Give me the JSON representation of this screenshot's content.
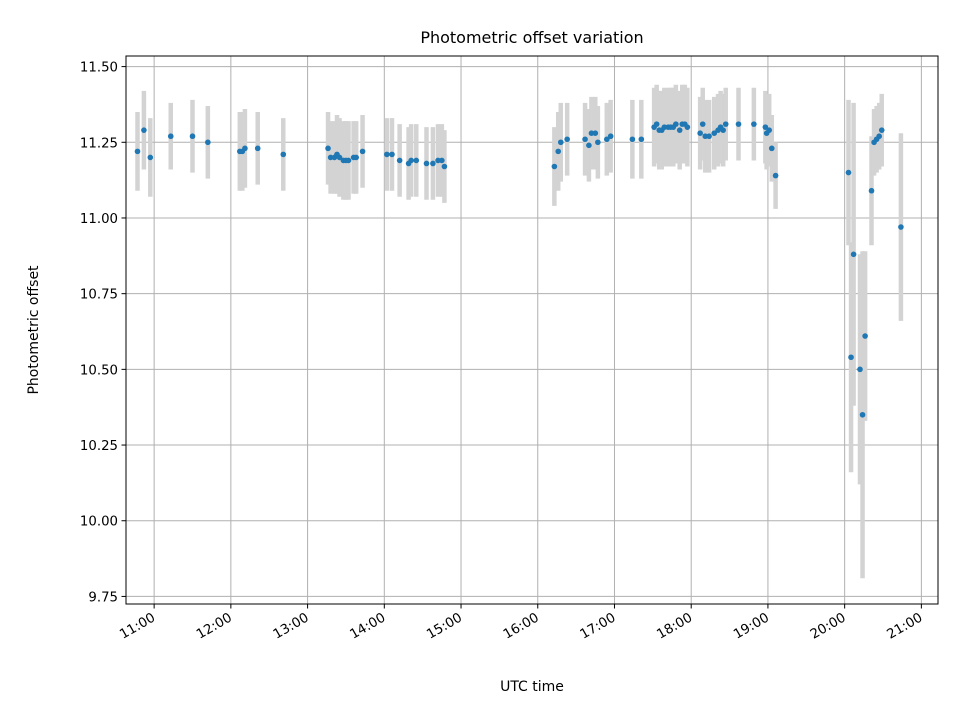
{
  "chart_data": {
    "type": "scatter",
    "title": "Photometric offset variation",
    "xlabel": "UTC time",
    "ylabel": "Photometric offset",
    "xlim": [
      "10:38",
      "21:13"
    ],
    "ylim": [
      9.725,
      11.535
    ],
    "x_ticks": [
      "11:00",
      "12:00",
      "13:00",
      "14:00",
      "15:00",
      "16:00",
      "17:00",
      "18:00",
      "19:00",
      "20:00",
      "21:00"
    ],
    "y_ticks": [
      "9.75",
      "10.00",
      "10.25",
      "10.50",
      "10.75",
      "11.00",
      "11.25",
      "11.50"
    ],
    "grid": true,
    "colors": {
      "points": "#1f77b4",
      "error_bars": "#d3d3d3",
      "grid": "#b0b0b0"
    },
    "series": [
      {
        "x": [
          "10:47",
          "10:52",
          "10:57",
          "11:13",
          "11:30",
          "11:42",
          "12:07",
          "12:09",
          "12:11",
          "12:21",
          "12:41",
          "13:16",
          "13:18",
          "13:21",
          "13:23",
          "13:25",
          "13:28",
          "13:30",
          "13:32",
          "13:36",
          "13:38",
          "13:43",
          "14:02",
          "14:06",
          "14:12",
          "14:19",
          "14:21",
          "14:25",
          "14:33",
          "14:38",
          "14:42",
          "14:45",
          "14:47",
          "16:13",
          "16:16",
          "16:18",
          "16:23",
          "16:37",
          "16:40",
          "16:42",
          "16:45",
          "16:47",
          "16:54",
          "16:57",
          "17:14",
          "17:21",
          "17:31",
          "17:33",
          "17:35",
          "17:37",
          "17:39",
          "17:42",
          "17:44",
          "17:46",
          "17:48",
          "17:51",
          "17:53",
          "17:55",
          "17:57",
          "18:07",
          "18:09",
          "18:11",
          "18:14",
          "18:18",
          "18:21",
          "18:23",
          "18:25",
          "18:27",
          "18:37",
          "18:49",
          "18:58",
          "18:59",
          "19:01",
          "19:03",
          "19:06",
          "20:03",
          "20:05",
          "20:07",
          "20:12",
          "20:14",
          "20:16",
          "20:21",
          "20:23",
          "20:25",
          "20:27",
          "20:29",
          "20:44"
        ],
        "y": [
          11.22,
          11.29,
          11.2,
          11.27,
          11.27,
          11.25,
          11.22,
          11.22,
          11.23,
          11.23,
          11.21,
          11.23,
          11.2,
          11.2,
          11.21,
          11.2,
          11.19,
          11.19,
          11.19,
          11.2,
          11.2,
          11.22,
          11.21,
          11.21,
          11.19,
          11.18,
          11.19,
          11.19,
          11.18,
          11.18,
          11.19,
          11.19,
          11.17,
          11.17,
          11.22,
          11.25,
          11.26,
          11.26,
          11.24,
          11.28,
          11.28,
          11.25,
          11.26,
          11.27,
          11.26,
          11.26,
          11.3,
          11.31,
          11.29,
          11.29,
          11.3,
          11.3,
          11.3,
          11.3,
          11.31,
          11.29,
          11.31,
          11.31,
          11.3,
          11.28,
          11.31,
          11.27,
          11.27,
          11.28,
          11.29,
          11.3,
          11.29,
          11.31,
          11.31,
          11.31,
          11.3,
          11.28,
          11.29,
          11.23,
          11.14,
          11.15,
          10.54,
          10.88,
          10.5,
          10.35,
          10.61,
          11.09,
          11.25,
          11.26,
          11.27,
          11.29,
          10.97
        ],
        "err": [
          0.13,
          0.13,
          0.13,
          0.11,
          0.12,
          0.12,
          0.13,
          0.13,
          0.13,
          0.12,
          0.12,
          0.12,
          0.12,
          0.12,
          0.13,
          0.13,
          0.13,
          0.13,
          0.13,
          0.12,
          0.12,
          0.12,
          0.12,
          0.12,
          0.12,
          0.12,
          0.12,
          0.12,
          0.12,
          0.12,
          0.12,
          0.12,
          0.12,
          0.13,
          0.13,
          0.13,
          0.12,
          0.12,
          0.12,
          0.12,
          0.12,
          0.12,
          0.12,
          0.12,
          0.13,
          0.13,
          0.13,
          0.13,
          0.13,
          0.13,
          0.13,
          0.13,
          0.13,
          0.13,
          0.13,
          0.13,
          0.13,
          0.13,
          0.13,
          0.12,
          0.12,
          0.12,
          0.12,
          0.12,
          0.12,
          0.12,
          0.12,
          0.12,
          0.12,
          0.12,
          0.12,
          0.12,
          0.12,
          0.11,
          0.11,
          0.24,
          0.38,
          0.5,
          0.38,
          0.54,
          0.28,
          0.18,
          0.11,
          0.11,
          0.11,
          0.12,
          0.31
        ]
      }
    ]
  }
}
